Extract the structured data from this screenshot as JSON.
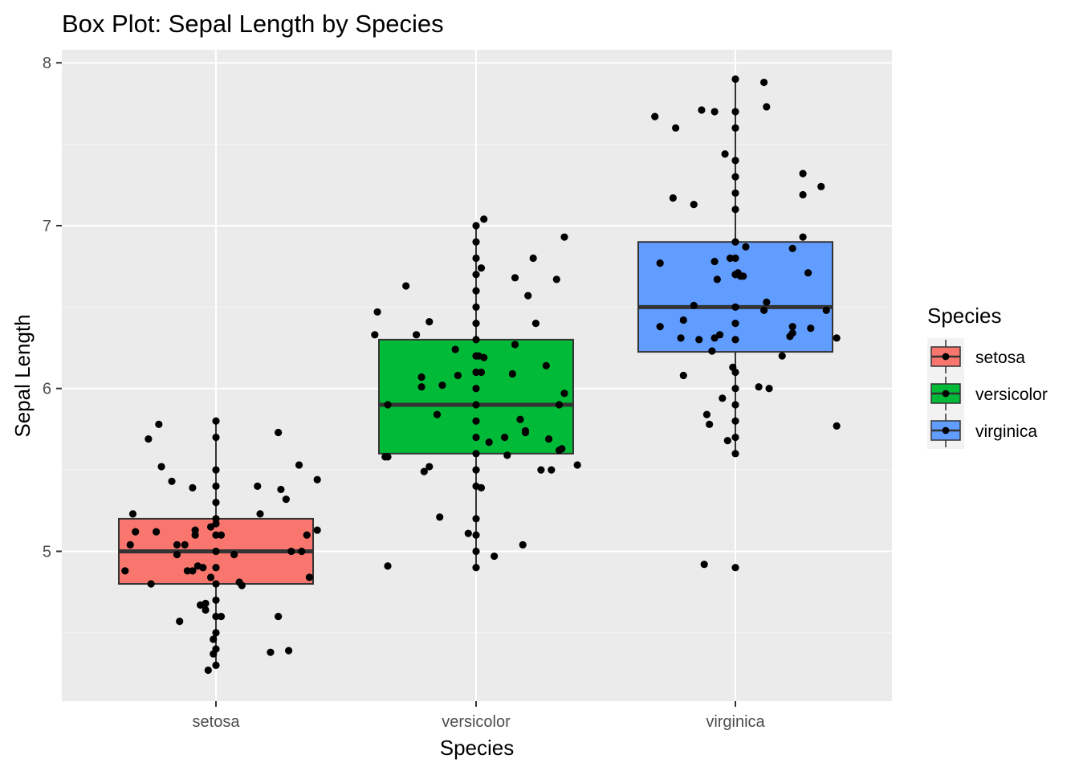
{
  "chart_data": {
    "type": "box",
    "title": "Box Plot: Sepal Length by Species",
    "xlabel": "Species",
    "ylabel": "Sepal Length",
    "ylim": [
      4.08,
      8.08
    ],
    "y_ticks": [
      "5",
      "6",
      "7",
      "8"
    ],
    "y_tick_values": [
      5,
      6,
      7,
      8
    ],
    "y_minor_values": [
      4.5,
      5.5,
      6.5,
      7.5
    ],
    "categories": [
      "setosa",
      "versicolor",
      "virginica"
    ],
    "grid": true,
    "legend": {
      "title": "Species",
      "position": "right"
    },
    "series": [
      {
        "name": "setosa",
        "color": "#F8766D",
        "box": {
          "min": 4.3,
          "q1": 4.8,
          "median": 5.0,
          "q3": 5.2,
          "max": 5.8
        },
        "points": [
          {
            "x": -0.35,
            "y": 4.88
          },
          {
            "x": -0.33,
            "y": 5.04
          },
          {
            "x": -0.32,
            "y": 5.23
          },
          {
            "x": -0.31,
            "y": 5.12
          },
          {
            "x": -0.26,
            "y": 5.69
          },
          {
            "x": -0.25,
            "y": 4.8
          },
          {
            "x": -0.23,
            "y": 5.12
          },
          {
            "x": -0.22,
            "y": 5.78
          },
          {
            "x": -0.21,
            "y": 5.52
          },
          {
            "x": -0.17,
            "y": 5.43
          },
          {
            "x": -0.15,
            "y": 5.04
          },
          {
            "x": -0.15,
            "y": 4.98
          },
          {
            "x": -0.14,
            "y": 4.57
          },
          {
            "x": -0.12,
            "y": 5.04
          },
          {
            "x": -0.11,
            "y": 4.88
          },
          {
            "x": -0.09,
            "y": 5.39
          },
          {
            "x": -0.09,
            "y": 4.88
          },
          {
            "x": -0.08,
            "y": 5.1
          },
          {
            "x": -0.08,
            "y": 5.13
          },
          {
            "x": -0.07,
            "y": 4.91
          },
          {
            "x": -0.06,
            "y": 4.67
          },
          {
            "x": -0.05,
            "y": 4.9
          },
          {
            "x": -0.04,
            "y": 4.64
          },
          {
            "x": -0.04,
            "y": 4.68
          },
          {
            "x": -0.03,
            "y": 4.27
          },
          {
            "x": -0.02,
            "y": 5.15
          },
          {
            "x": -0.02,
            "y": 4.84
          },
          {
            "x": -0.01,
            "y": 4.46
          },
          {
            "x": -0.01,
            "y": 4.37
          },
          {
            "x": 0.0,
            "y": 5.17
          },
          {
            "x": 0.02,
            "y": 5.1
          },
          {
            "x": 0.02,
            "y": 4.6
          },
          {
            "x": 0.0,
            "y": 5.8
          },
          {
            "x": 0.0,
            "y": 5.7
          },
          {
            "x": 0.0,
            "y": 5.5
          },
          {
            "x": 0.0,
            "y": 5.4
          },
          {
            "x": 0.0,
            "y": 5.3
          },
          {
            "x": 0.0,
            "y": 5.2
          },
          {
            "x": 0.0,
            "y": 5.1
          },
          {
            "x": 0.0,
            "y": 5.0
          },
          {
            "x": 0.0,
            "y": 4.9
          },
          {
            "x": 0.0,
            "y": 4.8
          },
          {
            "x": 0.0,
            "y": 4.7
          },
          {
            "x": 0.0,
            "y": 4.6
          },
          {
            "x": 0.0,
            "y": 4.5
          },
          {
            "x": 0.0,
            "y": 4.4
          },
          {
            "x": 0.0,
            "y": 4.3
          },
          {
            "x": 0.07,
            "y": 4.98
          },
          {
            "x": 0.09,
            "y": 4.81
          },
          {
            "x": 0.1,
            "y": 4.79
          },
          {
            "x": 0.16,
            "y": 5.4
          },
          {
            "x": 0.17,
            "y": 5.23
          },
          {
            "x": 0.21,
            "y": 4.38
          },
          {
            "x": 0.24,
            "y": 5.73
          },
          {
            "x": 0.24,
            "y": 4.6
          },
          {
            "x": 0.25,
            "y": 5.38
          },
          {
            "x": 0.27,
            "y": 5.32
          },
          {
            "x": 0.28,
            "y": 4.39
          },
          {
            "x": 0.29,
            "y": 5.0
          },
          {
            "x": 0.32,
            "y": 5.53
          },
          {
            "x": 0.33,
            "y": 5.0
          },
          {
            "x": 0.35,
            "y": 5.1
          },
          {
            "x": 0.36,
            "y": 4.84
          },
          {
            "x": 0.39,
            "y": 5.44
          },
          {
            "x": 0.39,
            "y": 5.13
          }
        ]
      },
      {
        "name": "versicolor",
        "color": "#00BA38",
        "box": {
          "min": 4.9,
          "q1": 5.6,
          "median": 5.9,
          "q3": 6.3,
          "max": 7.0
        },
        "points": [
          {
            "x": -0.39,
            "y": 6.33
          },
          {
            "x": -0.38,
            "y": 6.47
          },
          {
            "x": -0.35,
            "y": 5.58
          },
          {
            "x": -0.34,
            "y": 5.58
          },
          {
            "x": -0.34,
            "y": 5.9
          },
          {
            "x": -0.34,
            "y": 4.91
          },
          {
            "x": -0.27,
            "y": 6.63
          },
          {
            "x": -0.23,
            "y": 6.33
          },
          {
            "x": -0.21,
            "y": 6.07
          },
          {
            "x": -0.21,
            "y": 6.01
          },
          {
            "x": -0.2,
            "y": 5.49
          },
          {
            "x": -0.18,
            "y": 5.52
          },
          {
            "x": -0.18,
            "y": 6.41
          },
          {
            "x": -0.15,
            "y": 5.84
          },
          {
            "x": -0.14,
            "y": 5.21
          },
          {
            "x": -0.13,
            "y": 6.02
          },
          {
            "x": -0.08,
            "y": 6.24
          },
          {
            "x": -0.07,
            "y": 6.08
          },
          {
            "x": -0.03,
            "y": 5.11
          },
          {
            "x": 0.01,
            "y": 6.2
          },
          {
            "x": 0.02,
            "y": 5.39
          },
          {
            "x": 0.02,
            "y": 6.74
          },
          {
            "x": 0.02,
            "y": 6.1
          },
          {
            "x": 0.03,
            "y": 6.19
          },
          {
            "x": 0.03,
            "y": 7.04
          },
          {
            "x": 0.05,
            "y": 5.67
          },
          {
            "x": 0.07,
            "y": 4.97
          },
          {
            "x": 0.11,
            "y": 5.7
          },
          {
            "x": 0.12,
            "y": 5.59
          },
          {
            "x": 0.14,
            "y": 6.09
          },
          {
            "x": 0.15,
            "y": 6.27
          },
          {
            "x": 0.15,
            "y": 6.68
          },
          {
            "x": 0.17,
            "y": 5.81
          },
          {
            "x": 0.18,
            "y": 5.04
          },
          {
            "x": 0.19,
            "y": 5.74
          },
          {
            "x": 0.19,
            "y": 5.73
          },
          {
            "x": 0.2,
            "y": 6.57
          },
          {
            "x": 0.22,
            "y": 6.8
          },
          {
            "x": 0.23,
            "y": 6.4
          },
          {
            "x": 0.25,
            "y": 5.5
          },
          {
            "x": 0.27,
            "y": 6.14
          },
          {
            "x": 0.29,
            "y": 5.5
          },
          {
            "x": 0.28,
            "y": 5.69
          },
          {
            "x": 0.31,
            "y": 6.67
          },
          {
            "x": 0.32,
            "y": 5.62
          },
          {
            "x": 0.33,
            "y": 5.63
          },
          {
            "x": 0.32,
            "y": 5.9
          },
          {
            "x": 0.34,
            "y": 5.97
          },
          {
            "x": 0.34,
            "y": 6.93
          },
          {
            "x": 0.39,
            "y": 5.53
          },
          {
            "x": 0.0,
            "y": 7.0
          },
          {
            "x": 0.0,
            "y": 6.9
          },
          {
            "x": 0.0,
            "y": 6.8
          },
          {
            "x": 0.0,
            "y": 6.7
          },
          {
            "x": 0.0,
            "y": 6.6
          },
          {
            "x": 0.0,
            "y": 6.5
          },
          {
            "x": 0.0,
            "y": 6.4
          },
          {
            "x": 0.0,
            "y": 6.3
          },
          {
            "x": 0.0,
            "y": 6.2
          },
          {
            "x": 0.0,
            "y": 6.1
          },
          {
            "x": 0.0,
            "y": 6.0
          },
          {
            "x": 0.0,
            "y": 5.9
          },
          {
            "x": 0.0,
            "y": 5.8
          },
          {
            "x": 0.0,
            "y": 5.7
          },
          {
            "x": 0.0,
            "y": 5.6
          },
          {
            "x": 0.0,
            "y": 5.5
          },
          {
            "x": 0.0,
            "y": 5.4
          },
          {
            "x": 0.0,
            "y": 5.2
          },
          {
            "x": 0.0,
            "y": 5.1
          },
          {
            "x": 0.0,
            "y": 5.0
          },
          {
            "x": 0.0,
            "y": 4.9
          }
        ]
      },
      {
        "name": "virginica",
        "color": "#619CFF",
        "box": {
          "min": 5.6,
          "q1": 6.225,
          "median": 6.5,
          "q3": 6.9,
          "max": 7.9
        },
        "points": [
          {
            "x": -0.31,
            "y": 7.67
          },
          {
            "x": -0.29,
            "y": 6.77
          },
          {
            "x": -0.29,
            "y": 6.38
          },
          {
            "x": -0.24,
            "y": 7.17
          },
          {
            "x": -0.23,
            "y": 7.6
          },
          {
            "x": -0.21,
            "y": 6.31
          },
          {
            "x": -0.2,
            "y": 6.42
          },
          {
            "x": -0.2,
            "y": 6.08
          },
          {
            "x": -0.16,
            "y": 6.51
          },
          {
            "x": -0.16,
            "y": 7.13
          },
          {
            "x": -0.14,
            "y": 6.3
          },
          {
            "x": -0.13,
            "y": 7.71
          },
          {
            "x": -0.12,
            "y": 4.92
          },
          {
            "x": -0.11,
            "y": 5.84
          },
          {
            "x": -0.1,
            "y": 5.78
          },
          {
            "x": -0.09,
            "y": 6.23
          },
          {
            "x": -0.08,
            "y": 6.31
          },
          {
            "x": -0.08,
            "y": 6.78
          },
          {
            "x": -0.08,
            "y": 7.7
          },
          {
            "x": -0.07,
            "y": 6.67
          },
          {
            "x": -0.06,
            "y": 6.33
          },
          {
            "x": -0.05,
            "y": 5.94
          },
          {
            "x": -0.04,
            "y": 7.44
          },
          {
            "x": -0.03,
            "y": 5.68
          },
          {
            "x": -0.02,
            "y": 6.8
          },
          {
            "x": -0.01,
            "y": 6.13
          },
          {
            "x": 0.0,
            "y": 6.7
          },
          {
            "x": 0.01,
            "y": 6.71
          },
          {
            "x": 0.02,
            "y": 6.69
          },
          {
            "x": 0.03,
            "y": 6.69
          },
          {
            "x": 0.04,
            "y": 6.87
          },
          {
            "x": 0.09,
            "y": 6.01
          },
          {
            "x": 0.11,
            "y": 6.48
          },
          {
            "x": 0.11,
            "y": 7.88
          },
          {
            "x": 0.12,
            "y": 7.73
          },
          {
            "x": 0.12,
            "y": 6.53
          },
          {
            "x": 0.13,
            "y": 6.0
          },
          {
            "x": 0.18,
            "y": 6.2
          },
          {
            "x": 0.21,
            "y": 6.32
          },
          {
            "x": 0.22,
            "y": 6.34
          },
          {
            "x": 0.22,
            "y": 6.38
          },
          {
            "x": 0.22,
            "y": 6.86
          },
          {
            "x": 0.26,
            "y": 7.32
          },
          {
            "x": 0.26,
            "y": 7.19
          },
          {
            "x": 0.26,
            "y": 6.93
          },
          {
            "x": 0.28,
            "y": 6.71
          },
          {
            "x": 0.29,
            "y": 6.37
          },
          {
            "x": 0.33,
            "y": 7.24
          },
          {
            "x": 0.35,
            "y": 6.48
          },
          {
            "x": 0.39,
            "y": 5.77
          },
          {
            "x": 0.39,
            "y": 6.31
          },
          {
            "x": 0.0,
            "y": 7.9
          },
          {
            "x": 0.0,
            "y": 7.7
          },
          {
            "x": 0.0,
            "y": 7.6
          },
          {
            "x": 0.0,
            "y": 7.4
          },
          {
            "x": 0.0,
            "y": 7.3
          },
          {
            "x": 0.0,
            "y": 7.2
          },
          {
            "x": 0.0,
            "y": 7.1
          },
          {
            "x": 0.0,
            "y": 6.9
          },
          {
            "x": 0.0,
            "y": 6.8
          },
          {
            "x": 0.0,
            "y": 6.7
          },
          {
            "x": 0.0,
            "y": 6.5
          },
          {
            "x": 0.0,
            "y": 6.4
          },
          {
            "x": 0.0,
            "y": 6.3
          },
          {
            "x": 0.0,
            "y": 6.1
          },
          {
            "x": 0.0,
            "y": 6.0
          },
          {
            "x": 0.0,
            "y": 5.9
          },
          {
            "x": 0.0,
            "y": 5.8
          },
          {
            "x": 0.0,
            "y": 5.7
          },
          {
            "x": 0.0,
            "y": 5.6
          },
          {
            "x": 0.0,
            "y": 4.9
          }
        ]
      }
    ]
  },
  "colors": {
    "panel_background": "#EBEBEB",
    "grid_major": "#FFFFFF",
    "box_outline": "#333333",
    "median_line": "#333333",
    "point": "#000000",
    "tick_text": "#4D4D4D"
  }
}
